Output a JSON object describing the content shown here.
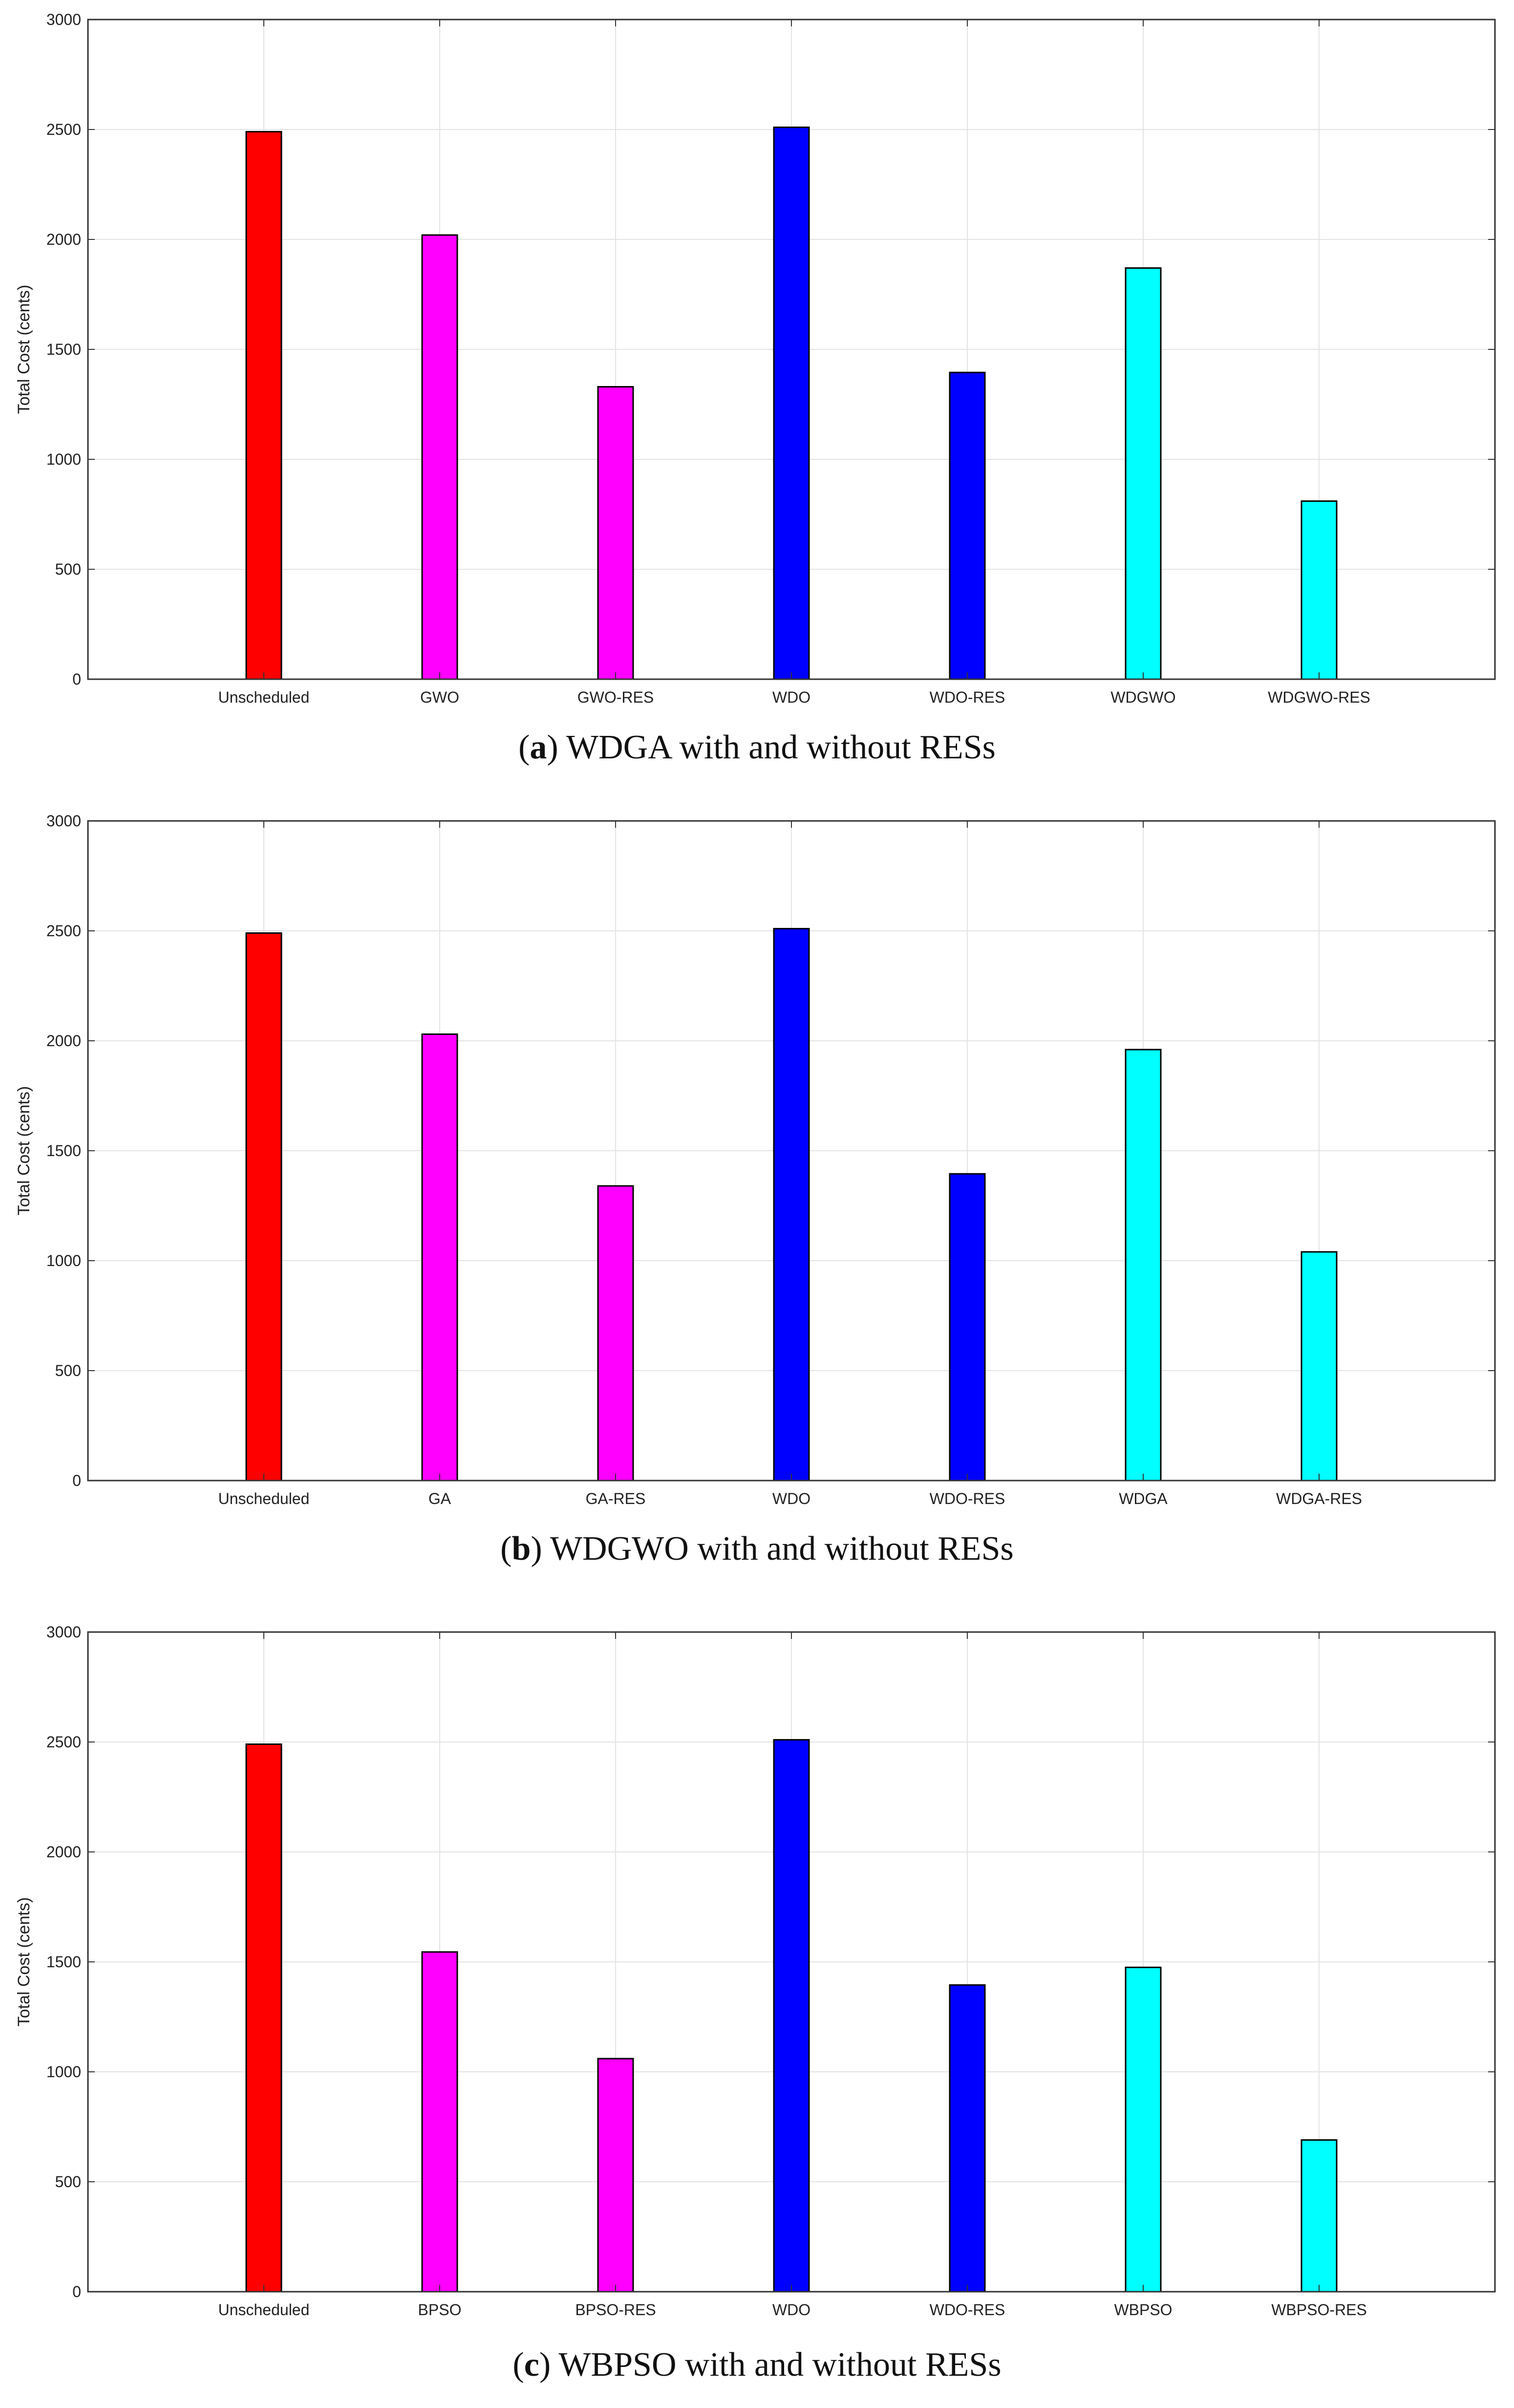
{
  "chart_data": [
    {
      "type": "bar",
      "title": "",
      "xlabel": "",
      "ylabel": "Total Cost (cents)",
      "ylim": [
        0,
        3000
      ],
      "yticks": [
        "0",
        "500",
        "1000",
        "1500",
        "2000",
        "2500",
        "3000"
      ],
      "grid": true,
      "categories": [
        "Unscheduled",
        "GWO",
        "GWO-RES",
        "WDO",
        "WDO-RES",
        "WDGWO",
        "WDGWO-RES"
      ],
      "values": [
        2490,
        2020,
        1330,
        2510,
        1395,
        1870,
        810
      ],
      "colors": [
        "#ff0000",
        "#ff00ff",
        "#ff00ff",
        "#0000ff",
        "#0000ff",
        "#00ffff",
        "#00ffff"
      ],
      "caption": {
        "letter": "a",
        "text": " WDGA with and without RESs"
      }
    },
    {
      "type": "bar",
      "title": "",
      "xlabel": "",
      "ylabel": "Total Cost (cents)",
      "ylim": [
        0,
        3000
      ],
      "yticks": [
        "0",
        "500",
        "1000",
        "1500",
        "2000",
        "2500",
        "3000"
      ],
      "grid": true,
      "categories": [
        "Unscheduled",
        "GA",
        "GA-RES",
        "WDO",
        "WDO-RES",
        "WDGA",
        "WDGA-RES"
      ],
      "values": [
        2490,
        2030,
        1340,
        2510,
        1395,
        1960,
        1040
      ],
      "colors": [
        "#ff0000",
        "#ff00ff",
        "#ff00ff",
        "#0000ff",
        "#0000ff",
        "#00ffff",
        "#00ffff"
      ],
      "caption": {
        "letter": "b",
        "text": " WDGWO with and without RESs"
      }
    },
    {
      "type": "bar",
      "title": "",
      "xlabel": "",
      "ylabel": "Total Cost (cents)",
      "ylim": [
        0,
        3000
      ],
      "yticks": [
        "0",
        "500",
        "1000",
        "1500",
        "2000",
        "2500",
        "3000"
      ],
      "grid": true,
      "categories": [
        "Unscheduled",
        "BPSO",
        "BPSO-RES",
        "WDO",
        "WDO-RES",
        "WBPSO",
        "WBPSO-RES"
      ],
      "values": [
        2490,
        1545,
        1060,
        2510,
        1395,
        1475,
        690
      ],
      "colors": [
        "#ff0000",
        "#ff00ff",
        "#ff00ff",
        "#0000ff",
        "#0000ff",
        "#00ffff",
        "#00ffff"
      ],
      "caption": {
        "letter": "c",
        "text": " WBPSO with and without RESs"
      }
    }
  ]
}
